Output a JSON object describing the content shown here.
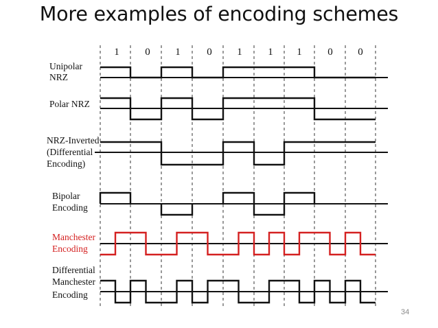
{
  "title": "More examples of encoding schemes",
  "page_number": "34",
  "colors": {
    "ink": "#111111",
    "highlight": "#d42020",
    "guide": "#333333"
  },
  "bits": [
    "1",
    "0",
    "1",
    "0",
    "1",
    "1",
    "1",
    "0",
    "0"
  ],
  "rows": [
    {
      "id": "unipolar-nrz",
      "label_lines": [
        "Unipolar",
        "NRZ"
      ],
      "color": "#111111"
    },
    {
      "id": "polar-nrz",
      "label_lines": [
        "Polar NRZ"
      ],
      "color": "#111111"
    },
    {
      "id": "nrz-inverted",
      "label_lines": [
        "NRZ-Inverted",
        "(Differential",
        "Encoding)"
      ],
      "color": "#111111"
    },
    {
      "id": "bipolar",
      "label_lines": [
        "Bipolar",
        "Encoding"
      ],
      "color": "#111111"
    },
    {
      "id": "manchester",
      "label_lines": [
        "Manchester",
        "Encoding"
      ],
      "color": "#d42020"
    },
    {
      "id": "differential-manchester",
      "label_lines": [
        "Differential",
        "Manchester",
        "Encoding"
      ],
      "color": "#111111"
    }
  ]
}
